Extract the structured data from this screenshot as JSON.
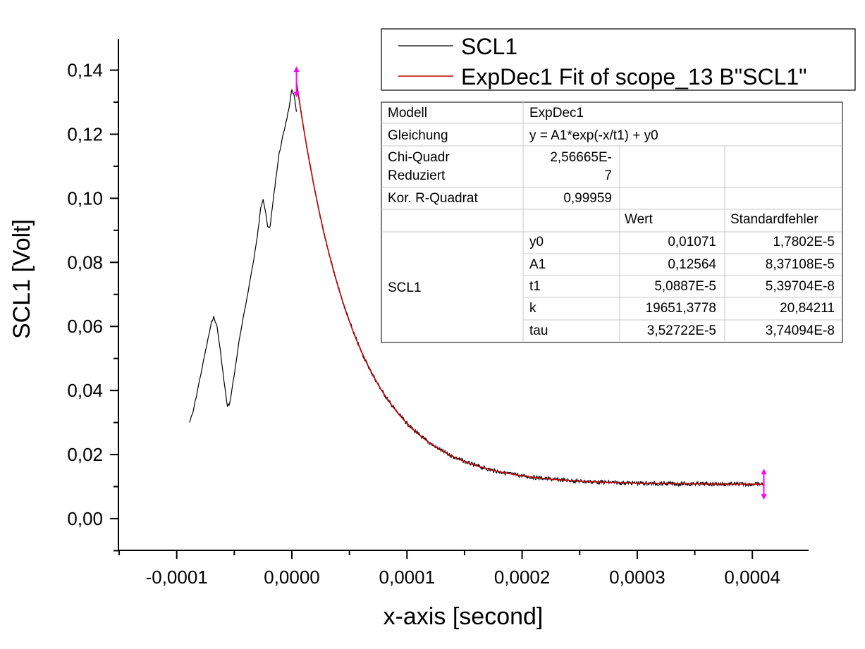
{
  "chart_data": {
    "type": "line",
    "xlabel": "x-axis [second]",
    "ylabel": "SCL1 [Volt]",
    "xlim": [
      -0.00015,
      0.00045
    ],
    "ylim": [
      -0.01,
      0.15
    ],
    "x_ticks": [
      "-0,0001",
      "0,0000",
      "0,0001",
      "0,0002",
      "0,0003",
      "0,0004"
    ],
    "x_tick_values": [
      -0.0001,
      0,
      0.0001,
      0.0002,
      0.0003,
      0.0004
    ],
    "y_ticks": [
      "0,00",
      "0,02",
      "0,04",
      "0,06",
      "0,08",
      "0,10",
      "0,12",
      "0,14"
    ],
    "y_tick_values": [
      0,
      0.02,
      0.04,
      0.06,
      0.08,
      0.1,
      0.12,
      0.14
    ],
    "grid": false,
    "legend_position": "top-right",
    "series": [
      {
        "name": "SCL1",
        "color": "#000000",
        "points": [
          [
            -8.9e-05,
            0.03
          ],
          [
            -8.6e-05,
            0.033
          ],
          [
            -8.2e-05,
            0.04
          ],
          [
            -7.8e-05,
            0.047
          ],
          [
            -7.4e-05,
            0.054
          ],
          [
            -7e-05,
            0.061
          ],
          [
            -6.8e-05,
            0.063
          ],
          [
            -6.5e-05,
            0.06
          ],
          [
            -6.2e-05,
            0.052
          ],
          [
            -5.9e-05,
            0.043
          ],
          [
            -5.6e-05,
            0.035
          ],
          [
            -5.4e-05,
            0.036
          ],
          [
            -5e-05,
            0.045
          ],
          [
            -4.6e-05,
            0.055
          ],
          [
            -4.2e-05,
            0.063
          ],
          [
            -3.8e-05,
            0.071
          ],
          [
            -3.4e-05,
            0.079
          ],
          [
            -3e-05,
            0.088
          ],
          [
            -2.7e-05,
            0.097
          ],
          [
            -2.5e-05,
            0.1
          ],
          [
            -2.3e-05,
            0.096
          ],
          [
            -2.1e-05,
            0.091
          ],
          [
            -1.9e-05,
            0.091
          ],
          [
            -1.7e-05,
            0.097
          ],
          [
            -1.4e-05,
            0.106
          ],
          [
            -1.1e-05,
            0.114
          ],
          [
            -8e-06,
            0.119
          ],
          [
            -5e-06,
            0.124
          ],
          [
            -2e-06,
            0.129
          ],
          [
            0.0,
            0.134
          ],
          [
            2e-06,
            0.132
          ],
          [
            4e-06,
            0.127
          ]
        ]
      },
      {
        "name": "ExpDec1 Fit of scope_13 B\"SCL1\"",
        "color": "#c00000",
        "model": {
          "A1": 0.12564,
          "t1": 5.0887e-05,
          "y0": 0.01071,
          "x_start": 4e-06,
          "x_end": 0.00041
        }
      }
    ],
    "fit_range_markers": [
      4e-06,
      0.00041
    ],
    "marker_color": "#ff00ff"
  },
  "legend": [
    {
      "label": "SCL1",
      "color": "#000000"
    },
    {
      "label": "ExpDec1 Fit of scope_13 B\"SCL1\"",
      "color": "#c00000"
    }
  ],
  "results_table": {
    "model_label": "Modell",
    "model_value": "ExpDec1",
    "equation_label": "Gleichung",
    "equation_value": "y = A1*exp(-x/t1) + y0",
    "chi_label_1": "Chi-Quadr",
    "chi_label_2": "Reduziert",
    "chi_value_1": "2,56665E-",
    "chi_value_2": "7",
    "r2_label": "Kor. R-Quadrat",
    "r2_value": "0,99959",
    "col_value": "Wert",
    "col_error": "Standardfehler",
    "group_label": "SCL1",
    "params": [
      {
        "name": "y0",
        "value": "0,01071",
        "error": "1,7802E-5"
      },
      {
        "name": "A1",
        "value": "0,12564",
        "error": "8,37108E-5"
      },
      {
        "name": "t1",
        "value": "5,0887E-5",
        "error": "5,39704E-8"
      },
      {
        "name": "k",
        "value": "19651,3778",
        "error": "20,84211"
      },
      {
        "name": "tau",
        "value": "3,52722E-5",
        "error": "3,74094E-8"
      }
    ]
  }
}
